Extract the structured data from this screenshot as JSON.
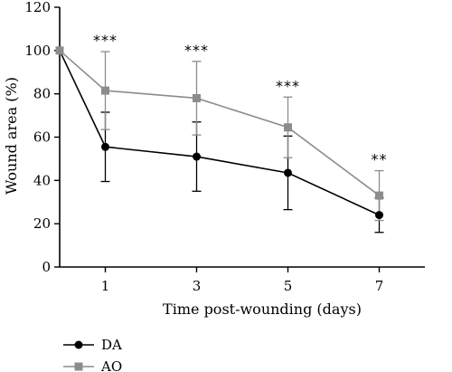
{
  "chart_data": {
    "type": "line",
    "title": "",
    "xlabel": "Time post-wounding (days)",
    "ylabel": "Wound area (%)",
    "x": [
      0,
      1,
      3,
      5,
      7
    ],
    "x_ticks": [
      1,
      3,
      5,
      7
    ],
    "y_ticks": [
      0,
      20,
      40,
      60,
      80,
      100,
      120
    ],
    "ylim": [
      0,
      120
    ],
    "xlim": [
      0,
      8
    ],
    "grid": false,
    "legend_position": "bottom-left",
    "series": [
      {
        "name": "DA",
        "color": "#000000",
        "marker": "circle",
        "values": [
          100,
          55.5,
          51,
          43.5,
          24
        ],
        "errors": [
          0,
          16,
          16,
          17,
          8
        ]
      },
      {
        "name": "AO",
        "color": "#8c8c8c",
        "marker": "square",
        "values": [
          100,
          81.5,
          78,
          64.5,
          33
        ],
        "errors": [
          0,
          18,
          17,
          14,
          11.5
        ]
      }
    ],
    "annotations": [
      {
        "x": 1,
        "text": "***"
      },
      {
        "x": 3,
        "text": "***"
      },
      {
        "x": 5,
        "text": "***"
      },
      {
        "x": 7,
        "text": "**"
      }
    ]
  }
}
